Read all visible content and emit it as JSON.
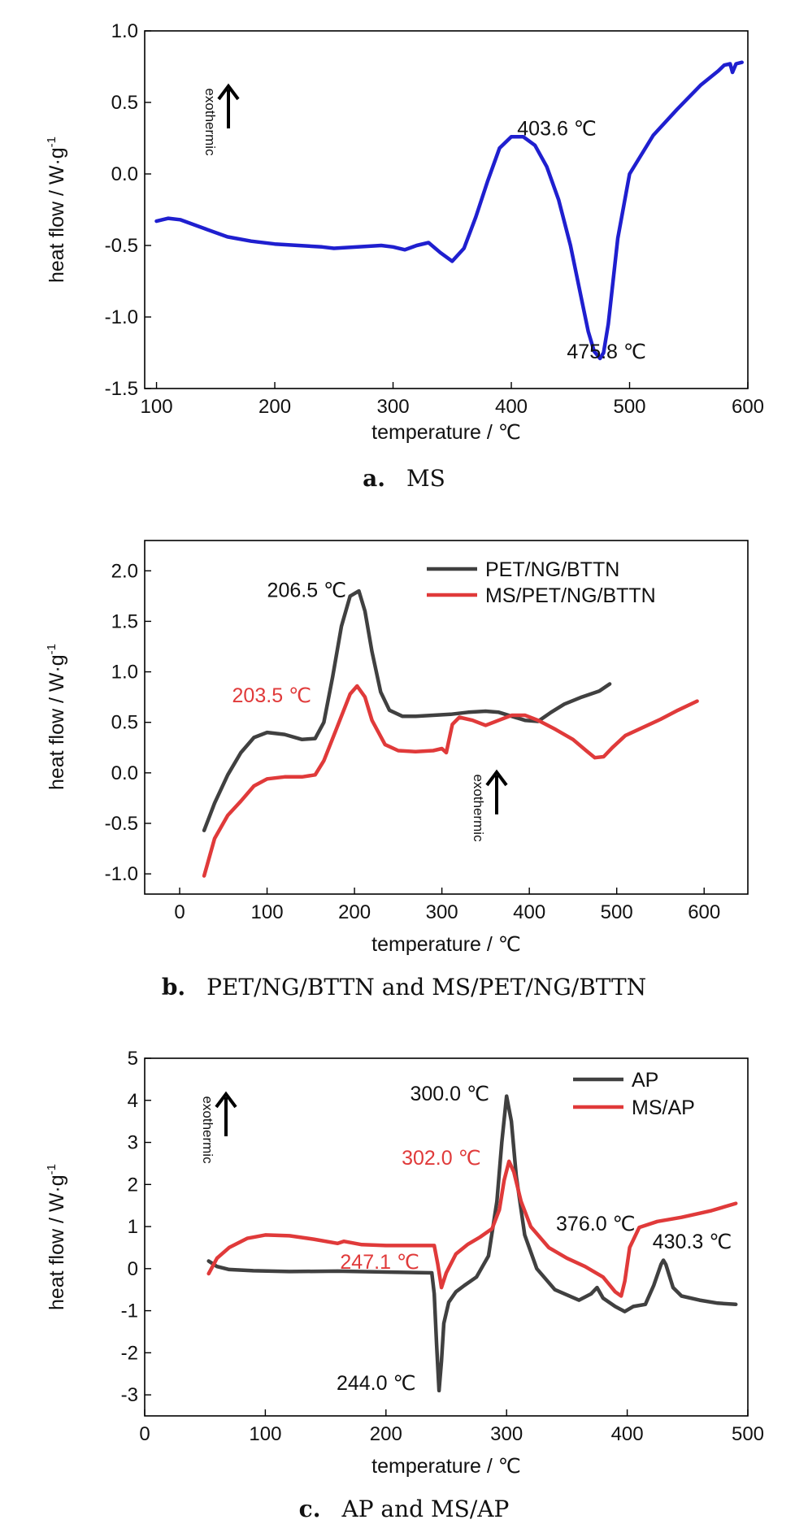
{
  "chart_data": [
    {
      "type": "line",
      "caption_letter": "a.",
      "caption_text": "MS",
      "xlabel": "temperature / ℃",
      "ylabel": "heat flow / W·g",
      "ylabel_sup": "-1",
      "xlim": [
        90,
        600
      ],
      "ylim": [
        -1.5,
        1.0
      ],
      "xticks": [
        100,
        200,
        300,
        400,
        500,
        600
      ],
      "yticks": [
        -1.5,
        -1.0,
        -0.5,
        0.0,
        0.5,
        1.0
      ],
      "xtick_labels": [
        "100",
        "200",
        "300",
        "400",
        "500",
        "600"
      ],
      "ytick_labels": [
        "-1.5",
        "-1.0",
        "-0.5",
        "0.0",
        "0.5",
        "1.0"
      ],
      "grid": false,
      "exo_label": "exothermic",
      "series": [
        {
          "color": "#1f1fcf",
          "x": [
            100,
            110,
            120,
            140,
            160,
            180,
            200,
            220,
            240,
            250,
            270,
            290,
            300,
            310,
            320,
            330,
            340,
            350,
            360,
            370,
            380,
            390,
            400,
            410,
            420,
            430,
            440,
            450,
            460,
            465,
            470,
            475,
            478,
            482,
            490,
            500,
            520,
            540,
            560,
            575,
            580,
            585,
            587,
            590,
            595
          ],
          "y": [
            -0.33,
            -0.31,
            -0.32,
            -0.38,
            -0.44,
            -0.47,
            -0.49,
            -0.5,
            -0.51,
            -0.52,
            -0.51,
            -0.5,
            -0.51,
            -0.53,
            -0.5,
            -0.48,
            -0.55,
            -0.61,
            -0.52,
            -0.3,
            -0.05,
            0.18,
            0.26,
            0.26,
            0.2,
            0.05,
            -0.18,
            -0.5,
            -0.9,
            -1.1,
            -1.24,
            -1.29,
            -1.25,
            -1.05,
            -0.45,
            0.0,
            0.27,
            0.45,
            0.62,
            0.72,
            0.76,
            0.77,
            0.71,
            0.77,
            0.78
          ]
        }
      ],
      "annotations": [
        {
          "text": "403.6 ℃",
          "x": 405,
          "y": 0.27,
          "color": "#111111"
        },
        {
          "text": "475.8 ℃",
          "x": 447,
          "y": -1.29,
          "color": "#111111"
        }
      ]
    },
    {
      "type": "line",
      "caption_letter": "b.",
      "caption_text": "PET/NG/BTTN and MS/PET/NG/BTTN",
      "xlabel": "temperature / ℃",
      "ylabel": "heat flow / W·g",
      "ylabel_sup": "-1",
      "xlim": [
        -40,
        650
      ],
      "ylim": [
        -1.2,
        2.3
      ],
      "xticks": [
        0,
        100,
        200,
        300,
        400,
        500,
        600
      ],
      "yticks": [
        -1.0,
        -0.5,
        0.0,
        0.5,
        1.0,
        1.5,
        2.0
      ],
      "xtick_labels": [
        "0",
        "100",
        "200",
        "300",
        "400",
        "500",
        "600"
      ],
      "ytick_labels": [
        "-1.0",
        "-0.5",
        "0.0",
        "0.5",
        "1.0",
        "1.5",
        "2.0"
      ],
      "grid": false,
      "exo_label": "exothermic",
      "legend_position": "top-right",
      "series": [
        {
          "name": "PET/NG/BTTN",
          "color": "#404040",
          "x": [
            28,
            40,
            55,
            70,
            85,
            100,
            120,
            140,
            155,
            165,
            175,
            185,
            195,
            205,
            212,
            220,
            230,
            240,
            255,
            270,
            290,
            310,
            330,
            350,
            365,
            380,
            395,
            410,
            425,
            440,
            460,
            480,
            492
          ],
          "y": [
            -0.57,
            -0.3,
            -0.02,
            0.2,
            0.35,
            0.4,
            0.38,
            0.33,
            0.34,
            0.5,
            0.95,
            1.45,
            1.75,
            1.8,
            1.6,
            1.2,
            0.8,
            0.62,
            0.56,
            0.56,
            0.57,
            0.58,
            0.6,
            0.61,
            0.6,
            0.56,
            0.52,
            0.51,
            0.6,
            0.68,
            0.75,
            0.81,
            0.88
          ]
        },
        {
          "name": "MS/PET/NG/BTTN",
          "color": "#e03a3a",
          "x": [
            28,
            40,
            55,
            70,
            85,
            100,
            120,
            140,
            155,
            165,
            180,
            195,
            203,
            212,
            220,
            235,
            250,
            270,
            290,
            300,
            305,
            312,
            320,
            335,
            350,
            365,
            380,
            395,
            410,
            430,
            450,
            465,
            475,
            485,
            495,
            510,
            530,
            550,
            570,
            592
          ],
          "y": [
            -1.02,
            -0.65,
            -0.42,
            -0.28,
            -0.13,
            -0.06,
            -0.04,
            -0.04,
            -0.02,
            0.12,
            0.45,
            0.78,
            0.86,
            0.75,
            0.52,
            0.28,
            0.22,
            0.21,
            0.22,
            0.24,
            0.2,
            0.48,
            0.55,
            0.52,
            0.47,
            0.52,
            0.57,
            0.57,
            0.52,
            0.43,
            0.33,
            0.22,
            0.15,
            0.16,
            0.25,
            0.37,
            0.45,
            0.53,
            0.62,
            0.71
          ]
        }
      ],
      "annotations": [
        {
          "text": "206.5 ℃",
          "x": 100,
          "y": 1.74,
          "color": "#111111"
        },
        {
          "text": "203.5 ℃",
          "x": 60,
          "y": 0.7,
          "color": "#e03a3a"
        }
      ]
    },
    {
      "type": "line",
      "caption_letter": "c.",
      "caption_text": "AP and MS/AP",
      "xlabel": "temperature / ℃",
      "ylabel": "heat flow / W·g",
      "ylabel_sup": "-1",
      "xlim": [
        0,
        500
      ],
      "ylim": [
        -3.5,
        5.0
      ],
      "xticks": [
        0,
        100,
        200,
        300,
        400,
        500
      ],
      "yticks": [
        -3,
        -2,
        -1,
        0,
        1,
        2,
        3,
        4,
        5
      ],
      "xtick_labels": [
        "0",
        "100",
        "200",
        "300",
        "400",
        "500"
      ],
      "ytick_labels": [
        "-3",
        "-2",
        "-1",
        "0",
        "1",
        "2",
        "3",
        "4",
        "5"
      ],
      "grid": false,
      "exo_label": "exothermic",
      "legend_position": "top-right",
      "series": [
        {
          "name": "AP",
          "color": "#404040",
          "x": [
            53,
            60,
            70,
            90,
            120,
            160,
            200,
            238,
            240,
            242,
            244,
            246,
            248,
            252,
            258,
            265,
            275,
            285,
            292,
            296,
            300,
            304,
            308,
            315,
            325,
            340,
            360,
            370,
            375,
            380,
            390,
            398,
            405,
            415,
            422,
            428,
            430,
            432,
            438,
            445,
            460,
            475,
            490
          ],
          "y": [
            0.18,
            0.05,
            -0.02,
            -0.05,
            -0.07,
            -0.06,
            -0.08,
            -0.1,
            -0.6,
            -1.8,
            -2.9,
            -2.2,
            -1.3,
            -0.8,
            -0.55,
            -0.4,
            -0.2,
            0.3,
            1.6,
            3.0,
            4.1,
            3.5,
            2.2,
            0.8,
            0.0,
            -0.5,
            -0.75,
            -0.6,
            -0.45,
            -0.7,
            -0.9,
            -1.02,
            -0.9,
            -0.85,
            -0.4,
            0.1,
            0.2,
            0.1,
            -0.45,
            -0.65,
            -0.75,
            -0.82,
            -0.85
          ]
        },
        {
          "name": "MS/AP",
          "color": "#e03a3a",
          "x": [
            53,
            60,
            70,
            85,
            100,
            120,
            140,
            160,
            165,
            180,
            200,
            220,
            240,
            243,
            246,
            250,
            258,
            268,
            278,
            288,
            294,
            298,
            302,
            306,
            312,
            320,
            335,
            350,
            365,
            380,
            390,
            395,
            398,
            402,
            410,
            425,
            445,
            470,
            490
          ],
          "y": [
            -0.12,
            0.25,
            0.5,
            0.72,
            0.8,
            0.78,
            0.7,
            0.6,
            0.65,
            0.57,
            0.55,
            0.55,
            0.55,
            0.1,
            -0.45,
            -0.1,
            0.35,
            0.58,
            0.75,
            0.95,
            1.4,
            2.1,
            2.55,
            2.3,
            1.6,
            1.0,
            0.5,
            0.25,
            0.05,
            -0.2,
            -0.55,
            -0.65,
            -0.3,
            0.5,
            0.98,
            1.12,
            1.22,
            1.38,
            1.55
          ]
        }
      ],
      "annotations": [
        {
          "text": "300.0 ℃",
          "x": 220,
          "y": 4.0,
          "color": "#111111"
        },
        {
          "text": "302.0 ℃",
          "x": 213,
          "y": 2.47,
          "color": "#e03a3a"
        },
        {
          "text": "247.1 ℃",
          "x": 162,
          "y": 0.0,
          "color": "#e03a3a"
        },
        {
          "text": "244.0 ℃",
          "x": 159,
          "y": -2.88,
          "color": "#111111"
        },
        {
          "text": "376.0 ℃",
          "x": 341,
          "y": 0.9,
          "color": "#111111"
        },
        {
          "text": "430.3 ℃",
          "x": 421,
          "y": 0.48,
          "color": "#111111"
        }
      ]
    }
  ]
}
